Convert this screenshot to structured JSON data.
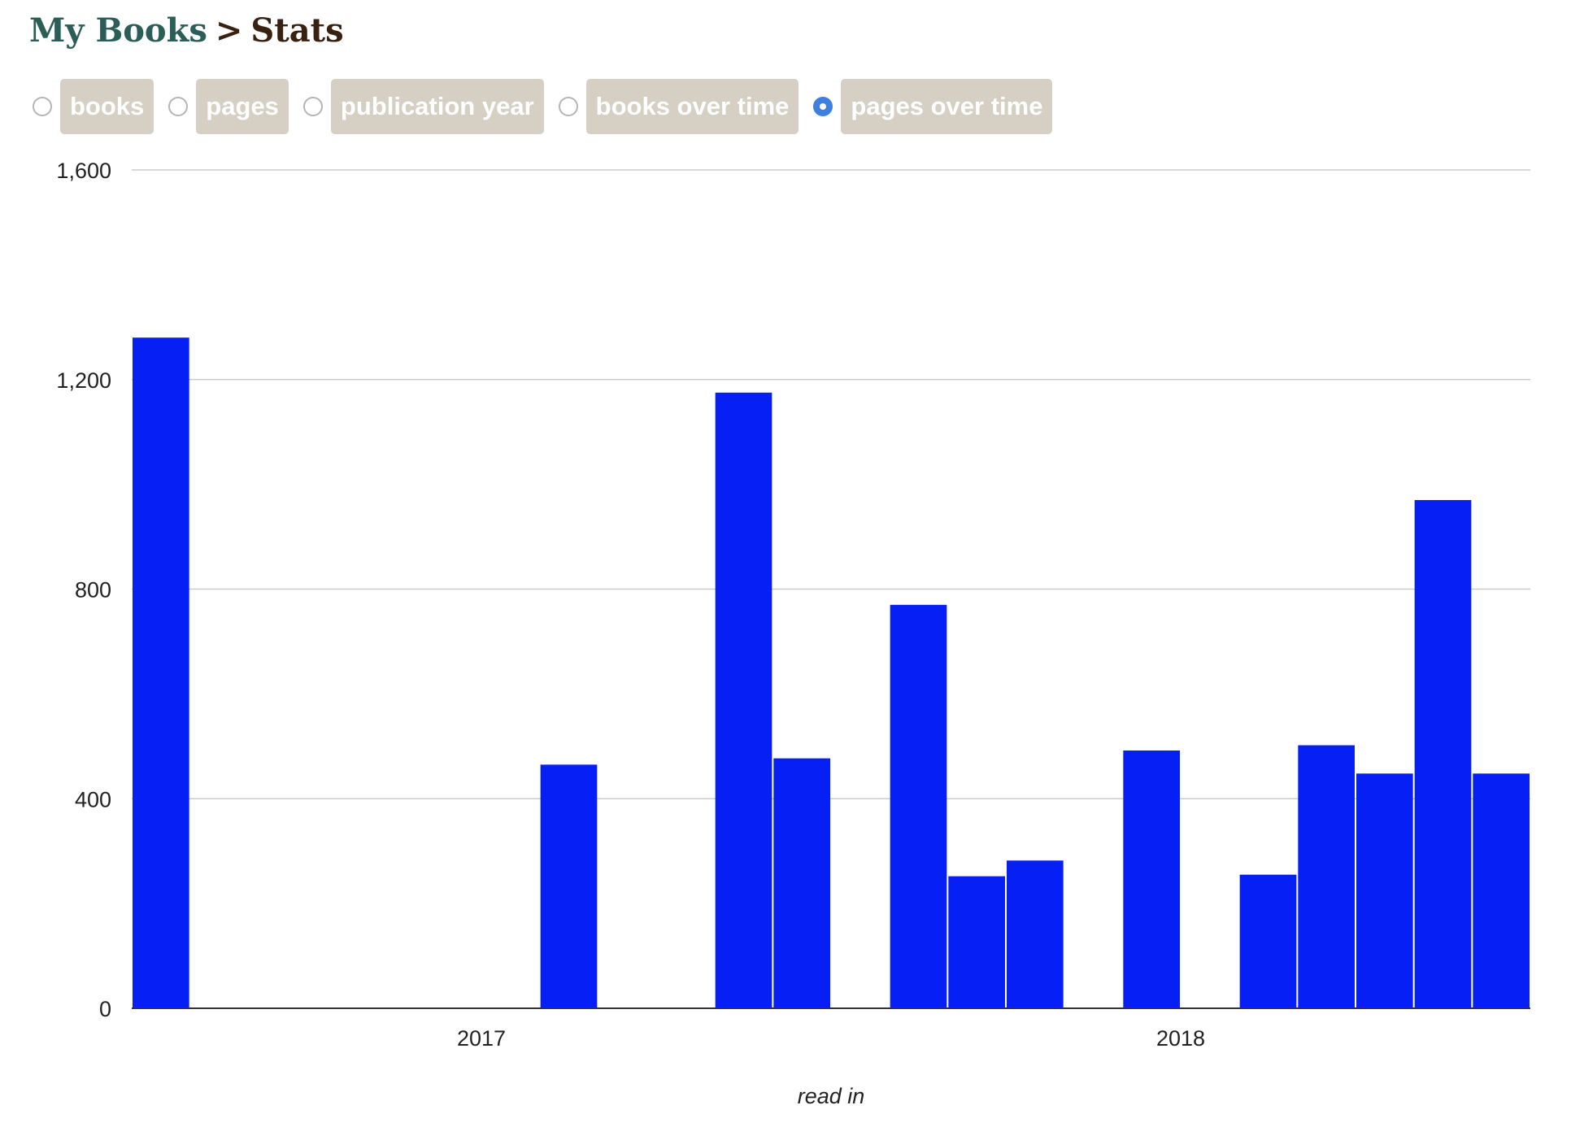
{
  "breadcrumb": {
    "root": "My Books",
    "separator": ">",
    "current": "Stats"
  },
  "tabs": [
    {
      "label": "books",
      "selected": false
    },
    {
      "label": "pages",
      "selected": false
    },
    {
      "label": "publication year",
      "selected": false
    },
    {
      "label": "books over time",
      "selected": false
    },
    {
      "label": "pages over time",
      "selected": true
    }
  ],
  "colors": {
    "bar": "#061ff5",
    "gridline": "#cccccc",
    "baseline": "#333333",
    "tab_bg": "#d6d0c4",
    "radio_selected": "#3f7fe0",
    "breadcrumb_link": "#2b5e57",
    "breadcrumb_text": "#382110"
  },
  "chart_data": {
    "type": "bar",
    "xlabel": "read in",
    "ylabel": "",
    "ylim": [
      0,
      1600
    ],
    "yticks": [
      0,
      400,
      800,
      1200,
      1600
    ],
    "ytick_labels": [
      "0",
      "400",
      "800",
      "1,200",
      "1,600"
    ],
    "grid": true,
    "x_units": "months",
    "x_range": [
      "2016-07",
      "2018-07"
    ],
    "xtick_labels": [
      {
        "label": "2017",
        "at": "2017-01"
      },
      {
        "label": "2018",
        "at": "2018-01"
      }
    ],
    "series": [
      {
        "values": [
          {
            "month": "2016-07",
            "pages": 1280
          },
          {
            "month": "2017-02",
            "pages": 465
          },
          {
            "month": "2017-05",
            "pages": 1175
          },
          {
            "month": "2017-06",
            "pages": 477
          },
          {
            "month": "2017-08",
            "pages": 770
          },
          {
            "month": "2017-09",
            "pages": 252
          },
          {
            "month": "2017-10",
            "pages": 282
          },
          {
            "month": "2017-12",
            "pages": 492
          },
          {
            "month": "2018-02",
            "pages": 255
          },
          {
            "month": "2018-03",
            "pages": 502
          },
          {
            "month": "2018-04",
            "pages": 448
          },
          {
            "month": "2018-05",
            "pages": 970
          },
          {
            "month": "2018-06",
            "pages": 448
          }
        ]
      }
    ]
  }
}
